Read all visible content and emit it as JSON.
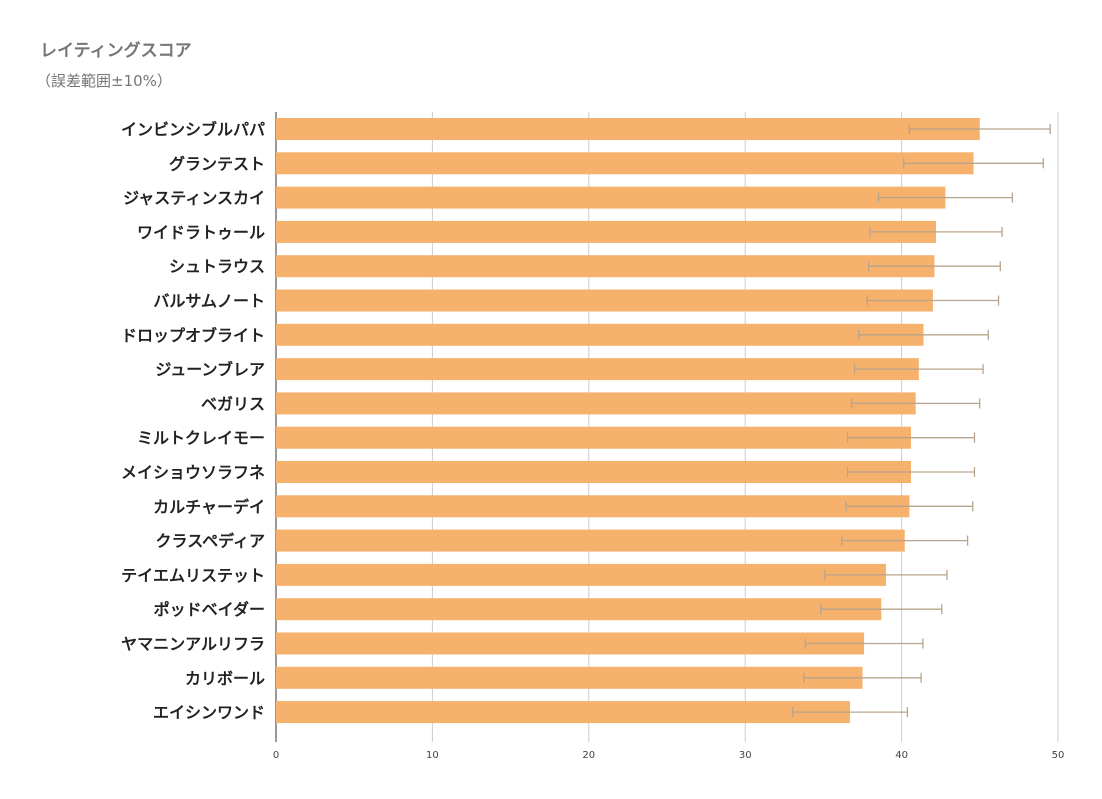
{
  "chart_data": {
    "type": "bar",
    "orientation": "horizontal",
    "title": "レイティングスコア",
    "subtitle": "（誤差範囲±10%）",
    "categories": [
      "インビンシブルパパ",
      "グランテスト",
      "ジャスティンスカイ",
      "ワイドラトゥール",
      "シュトラウス",
      "バルサムノート",
      "ドロップオブライト",
      "ジューンブレア",
      "ベガリス",
      "ミルトクレイモー",
      "メイショウソラフネ",
      "カルチャーデイ",
      "クラスペディア",
      "テイエムリステット",
      "ポッドベイダー",
      "ヤマニンアルリフラ",
      "カリボール",
      "エイシンワンド"
    ],
    "values": [
      45.0,
      44.6,
      42.8,
      42.2,
      42.1,
      42.0,
      41.4,
      41.1,
      40.9,
      40.6,
      40.6,
      40.5,
      40.2,
      39.0,
      38.7,
      37.6,
      37.5,
      36.7
    ],
    "error_percent": 10,
    "xlim": [
      0,
      50
    ],
    "xticks": [
      0,
      10,
      20,
      30,
      40,
      50
    ],
    "tick_labels": [
      "0",
      "10",
      "20",
      "30",
      "40",
      "50"
    ],
    "grid": true,
    "bar_color": "#f6b16d",
    "error_bar_color": "#b8a48c",
    "grid_color": "#cccccc"
  }
}
